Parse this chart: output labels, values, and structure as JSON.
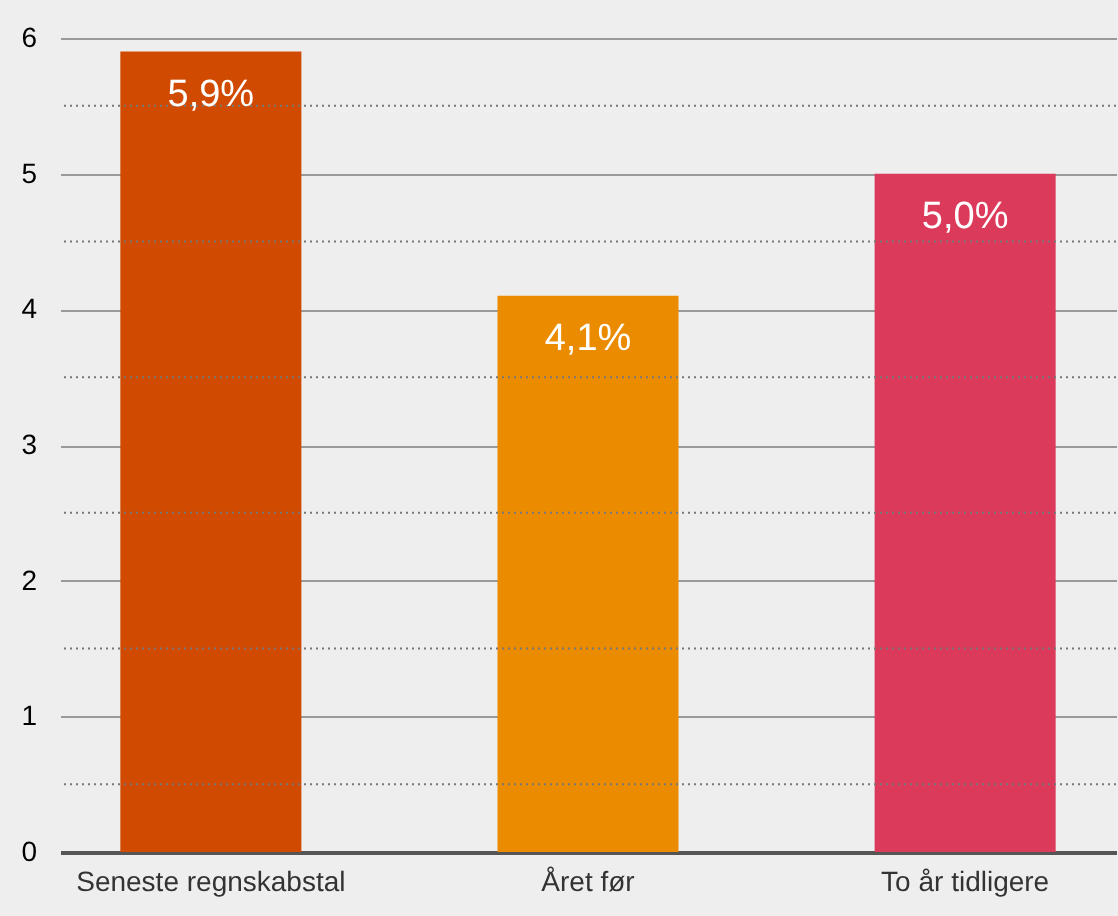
{
  "chart_data": {
    "type": "bar",
    "categories": [
      "Seneste regnskabstal",
      "Året før",
      "To år tidligere"
    ],
    "values": [
      5.9,
      4.1,
      5.0
    ],
    "colors": [
      "#d04a02",
      "#eb8c00",
      "#db3a5a"
    ],
    "value_labels": [
      "5,9%",
      "4,1%",
      "5,0%"
    ],
    "ylim": [
      0,
      6
    ],
    "yticks": [
      0,
      {
        "value": 0.5,
        "label": null
      },
      1,
      {
        "value": 1.5,
        "label": null
      },
      2,
      {
        "value": 2.5,
        "label": null
      },
      3,
      {
        "value": 3.5,
        "label": null
      },
      4,
      {
        "value": 4.5,
        "label": null
      },
      5,
      {
        "value": 5.5,
        "label": null
      },
      6
    ],
    "grid": "y"
  }
}
